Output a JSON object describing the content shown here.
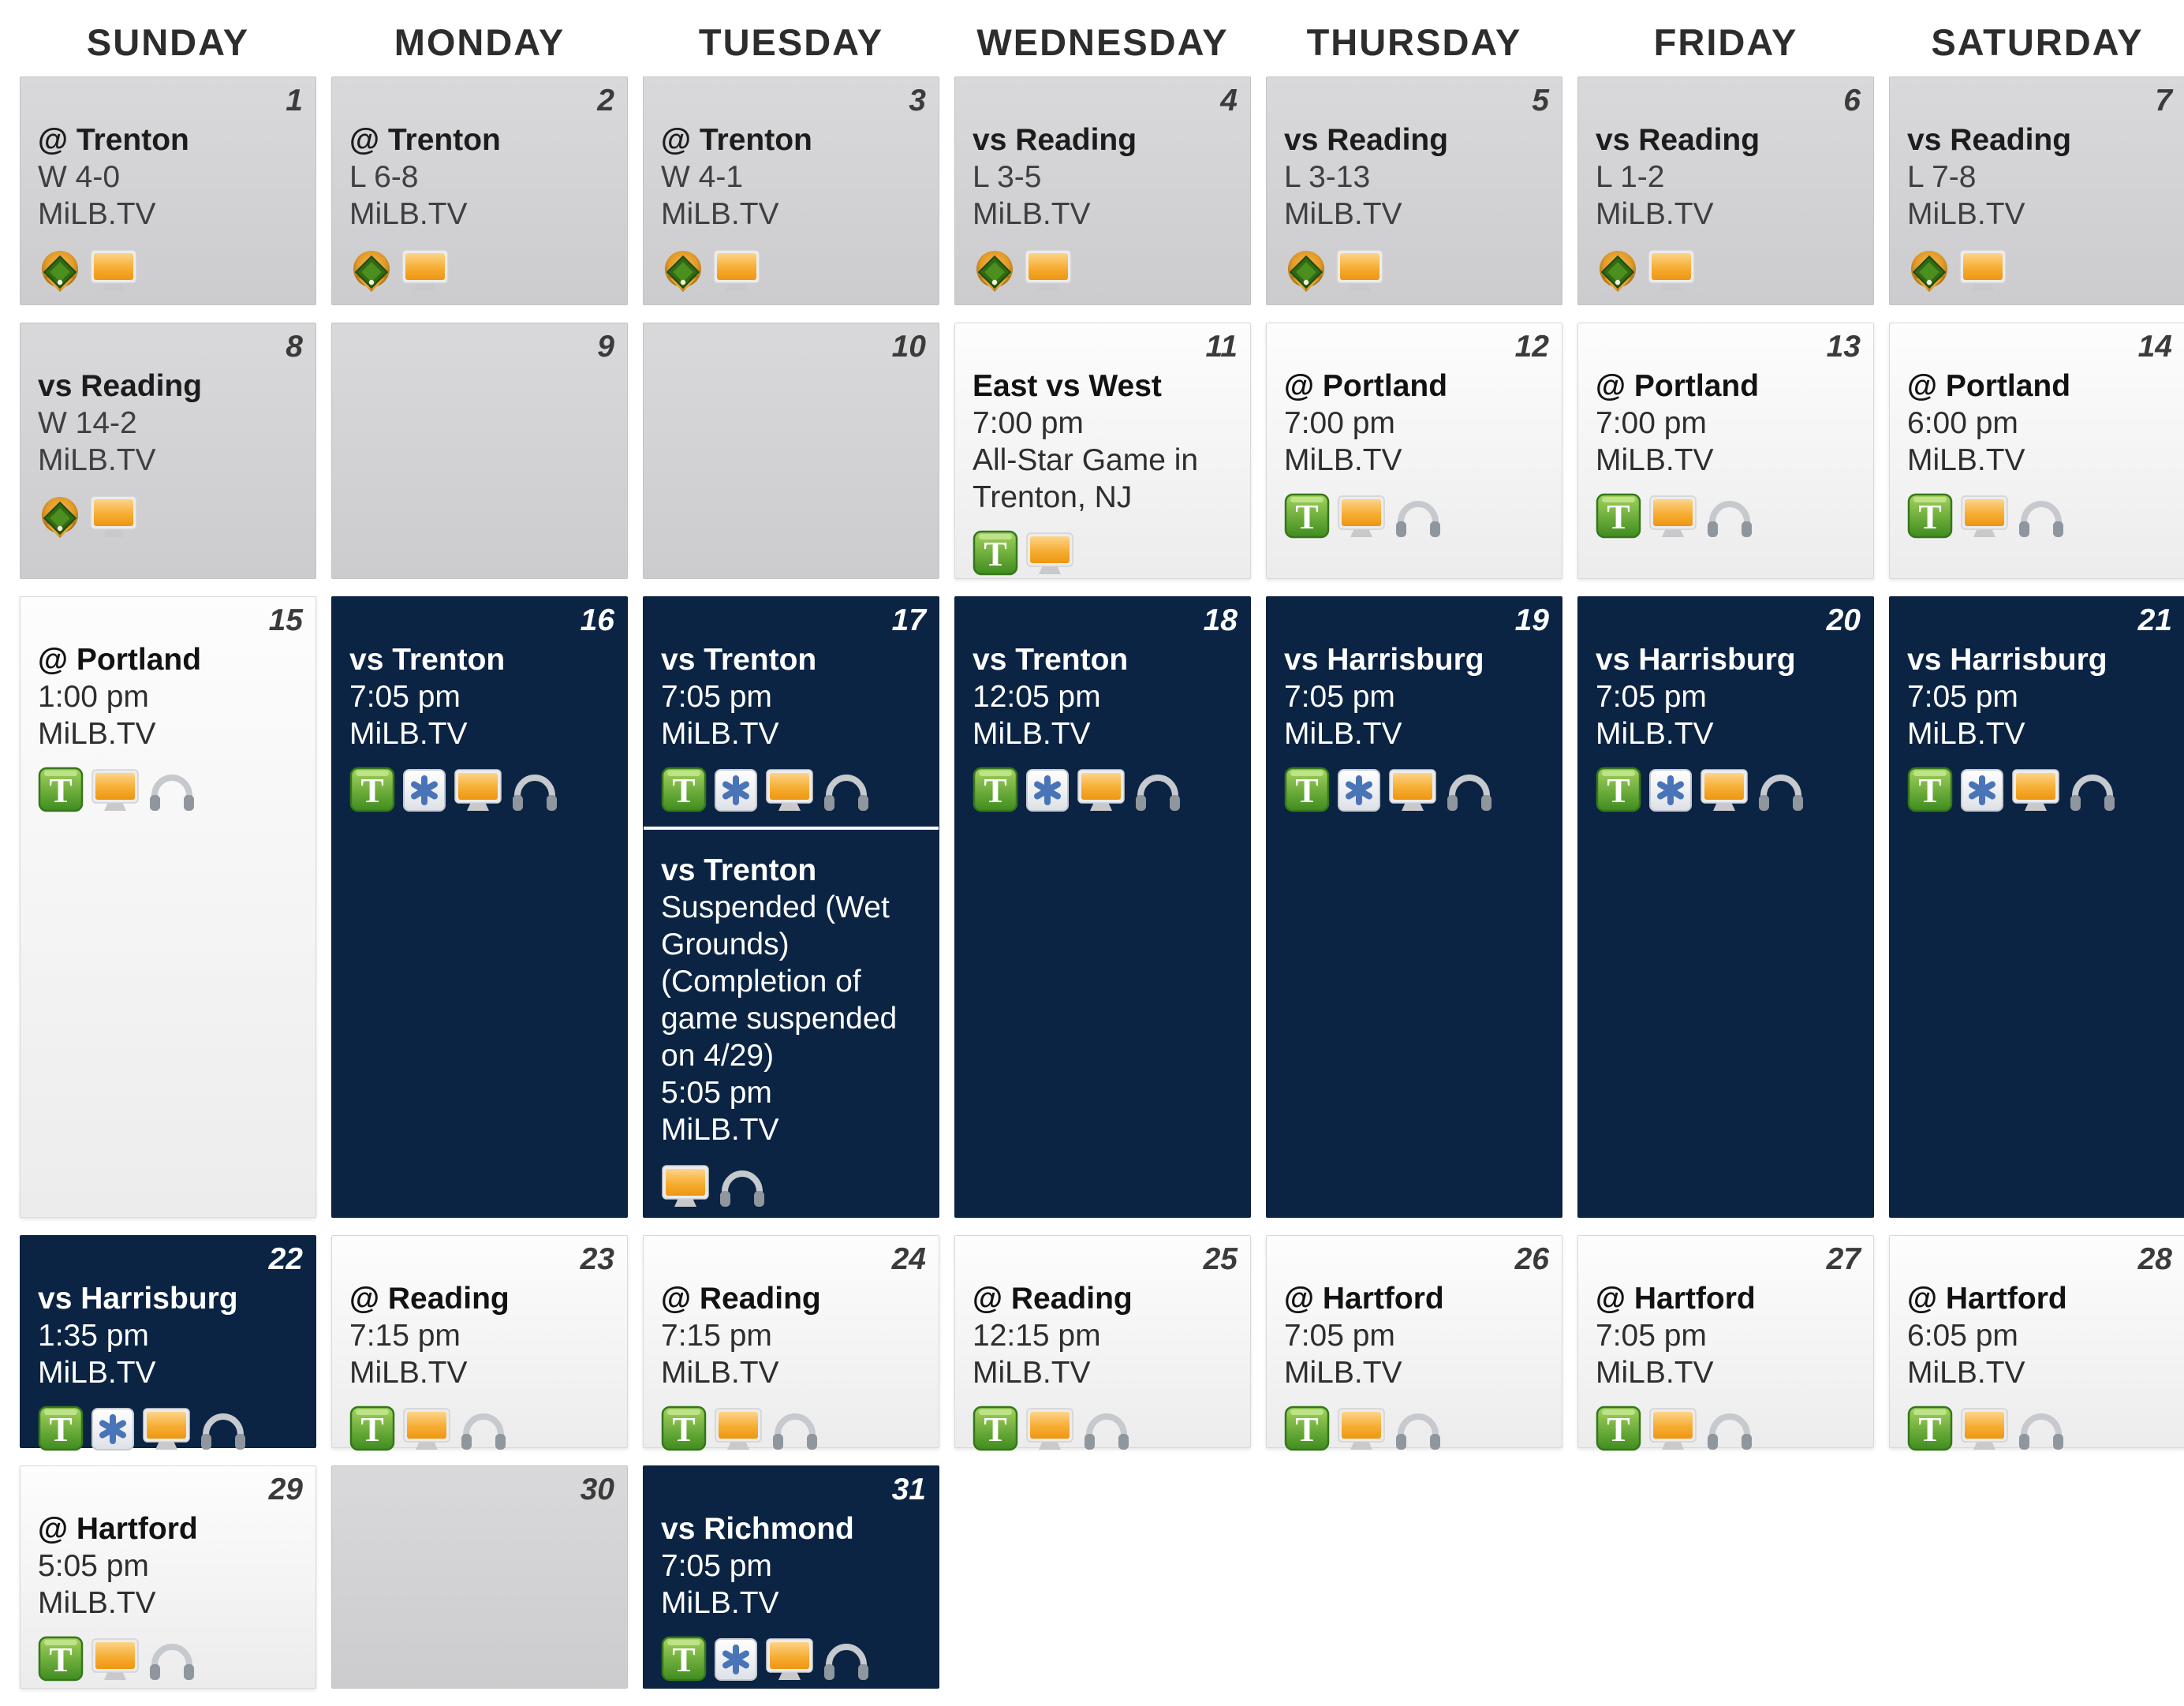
{
  "weekday_headers": [
    "SUNDAY",
    "MONDAY",
    "TUESDAY",
    "WEDNESDAY",
    "THURSDAY",
    "FRIDAY",
    "SATURDAY"
  ],
  "colors": {
    "home_cell": "#0b2444",
    "past_cell": "#d2d2d4",
    "upcoming_cell": "#f5f5f6",
    "ticket_green": "#449022",
    "monitor_orange": "#f09c1b",
    "promotion_blue": "#4a74b8",
    "day_number_dark": "#3b3b3b",
    "day_number_light": "#ffffff"
  },
  "weeks": [
    {
      "cells": [
        {
          "day": "1",
          "variant": "past",
          "games": [
            {
              "lines": [
                "@ Trenton",
                "W 4-0",
                "MiLB.TV"
              ],
              "icons": [
                "baseball-field",
                "tv-monitor"
              ]
            }
          ]
        },
        {
          "day": "2",
          "variant": "past",
          "games": [
            {
              "lines": [
                "@ Trenton",
                "L 6-8",
                "MiLB.TV"
              ],
              "icons": [
                "baseball-field",
                "tv-monitor"
              ]
            }
          ]
        },
        {
          "day": "3",
          "variant": "past",
          "games": [
            {
              "lines": [
                "@ Trenton",
                "W 4-1",
                "MiLB.TV"
              ],
              "icons": [
                "baseball-field",
                "tv-monitor"
              ]
            }
          ]
        },
        {
          "day": "4",
          "variant": "past",
          "games": [
            {
              "lines": [
                "vs Reading",
                "L 3-5",
                "MiLB.TV"
              ],
              "icons": [
                "baseball-field",
                "tv-monitor"
              ]
            }
          ]
        },
        {
          "day": "5",
          "variant": "past",
          "games": [
            {
              "lines": [
                "vs Reading",
                "L 3-13",
                "MiLB.TV"
              ],
              "icons": [
                "baseball-field",
                "tv-monitor"
              ]
            }
          ]
        },
        {
          "day": "6",
          "variant": "past",
          "games": [
            {
              "lines": [
                "vs Reading",
                "L 1-2",
                "MiLB.TV"
              ],
              "icons": [
                "baseball-field",
                "tv-monitor"
              ]
            }
          ]
        },
        {
          "day": "7",
          "variant": "past",
          "games": [
            {
              "lines": [
                "vs Reading",
                "L 7-8",
                "MiLB.TV"
              ],
              "icons": [
                "baseball-field",
                "tv-monitor"
              ]
            }
          ]
        }
      ]
    },
    {
      "cells": [
        {
          "day": "8",
          "variant": "past",
          "games": [
            {
              "lines": [
                "vs Reading",
                "W 14-2",
                "MiLB.TV"
              ],
              "icons": [
                "baseball-field",
                "tv-monitor"
              ]
            }
          ]
        },
        {
          "day": "9",
          "variant": "past",
          "games": []
        },
        {
          "day": "10",
          "variant": "past",
          "games": []
        },
        {
          "day": "11",
          "variant": "upcoming",
          "games": [
            {
              "lines": [
                "East vs West",
                "7:00 pm",
                "All-Star Game in Trenton, NJ"
              ],
              "icons": [
                "tickets",
                "tv-monitor"
              ]
            }
          ]
        },
        {
          "day": "12",
          "variant": "upcoming",
          "games": [
            {
              "lines": [
                "@ Portland",
                "7:00 pm",
                "MiLB.TV"
              ],
              "icons": [
                "tickets",
                "tv-monitor",
                "headphones"
              ]
            }
          ]
        },
        {
          "day": "13",
          "variant": "upcoming",
          "games": [
            {
              "lines": [
                "@ Portland",
                "7:00 pm",
                "MiLB.TV"
              ],
              "icons": [
                "tickets",
                "tv-monitor",
                "headphones"
              ]
            }
          ]
        },
        {
          "day": "14",
          "variant": "upcoming",
          "games": [
            {
              "lines": [
                "@ Portland",
                "6:00 pm",
                "MiLB.TV"
              ],
              "icons": [
                "tickets",
                "tv-monitor",
                "headphones"
              ]
            }
          ]
        }
      ]
    },
    {
      "cells": [
        {
          "day": "15",
          "variant": "upcoming",
          "games": [
            {
              "lines": [
                "@ Portland",
                "1:00 pm",
                "MiLB.TV"
              ],
              "icons": [
                "tickets",
                "tv-monitor",
                "headphones"
              ]
            }
          ]
        },
        {
          "day": "16",
          "variant": "home",
          "games": [
            {
              "lines": [
                "vs Trenton",
                "7:05 pm",
                "MiLB.TV"
              ],
              "icons": [
                "tickets",
                "promotion-asterisk",
                "tv-monitor",
                "headphones"
              ]
            }
          ]
        },
        {
          "day": "17",
          "variant": "home",
          "games": [
            {
              "lines": [
                "vs Trenton",
                "7:05 pm",
                "MiLB.TV"
              ],
              "icons": [
                "tickets",
                "promotion-asterisk",
                "tv-monitor",
                "headphones"
              ]
            },
            {
              "lines": [
                "vs Trenton",
                "Suspended (Wet Grounds)",
                "(Completion of game suspended on 4/29)",
                "5:05 pm",
                "MiLB.TV"
              ],
              "icons": [
                "tv-monitor",
                "headphones"
              ]
            }
          ]
        },
        {
          "day": "18",
          "variant": "home",
          "games": [
            {
              "lines": [
                "vs Trenton",
                "12:05 pm",
                "MiLB.TV"
              ],
              "icons": [
                "tickets",
                "promotion-asterisk",
                "tv-monitor",
                "headphones"
              ]
            }
          ]
        },
        {
          "day": "19",
          "variant": "home",
          "games": [
            {
              "lines": [
                "vs Harrisburg",
                "7:05 pm",
                "MiLB.TV"
              ],
              "icons": [
                "tickets",
                "promotion-asterisk",
                "tv-monitor",
                "headphones"
              ]
            }
          ]
        },
        {
          "day": "20",
          "variant": "home",
          "games": [
            {
              "lines": [
                "vs Harrisburg",
                "7:05 pm",
                "MiLB.TV"
              ],
              "icons": [
                "tickets",
                "promotion-asterisk",
                "tv-monitor",
                "headphones"
              ]
            }
          ]
        },
        {
          "day": "21",
          "variant": "home",
          "games": [
            {
              "lines": [
                "vs Harrisburg",
                "7:05 pm",
                "MiLB.TV"
              ],
              "icons": [
                "tickets",
                "promotion-asterisk",
                "tv-monitor",
                "headphones"
              ]
            }
          ]
        }
      ]
    },
    {
      "cells": [
        {
          "day": "22",
          "variant": "home",
          "games": [
            {
              "lines": [
                "vs Harrisburg",
                "1:35 pm",
                "MiLB.TV"
              ],
              "icons": [
                "tickets",
                "promotion-asterisk",
                "tv-monitor",
                "headphones"
              ]
            }
          ]
        },
        {
          "day": "23",
          "variant": "upcoming",
          "games": [
            {
              "lines": [
                "@ Reading",
                "7:15 pm",
                "MiLB.TV"
              ],
              "icons": [
                "tickets",
                "tv-monitor",
                "headphones"
              ]
            }
          ]
        },
        {
          "day": "24",
          "variant": "upcoming",
          "games": [
            {
              "lines": [
                "@ Reading",
                "7:15 pm",
                "MiLB.TV"
              ],
              "icons": [
                "tickets",
                "tv-monitor",
                "headphones"
              ]
            }
          ]
        },
        {
          "day": "25",
          "variant": "upcoming",
          "games": [
            {
              "lines": [
                "@ Reading",
                "12:15 pm",
                "MiLB.TV"
              ],
              "icons": [
                "tickets",
                "tv-monitor",
                "headphones"
              ]
            }
          ]
        },
        {
          "day": "26",
          "variant": "upcoming",
          "games": [
            {
              "lines": [
                "@ Hartford",
                "7:05 pm",
                "MiLB.TV"
              ],
              "icons": [
                "tickets",
                "tv-monitor",
                "headphones"
              ]
            }
          ]
        },
        {
          "day": "27",
          "variant": "upcoming",
          "games": [
            {
              "lines": [
                "@ Hartford",
                "7:05 pm",
                "MiLB.TV"
              ],
              "icons": [
                "tickets",
                "tv-monitor",
                "headphones"
              ]
            }
          ]
        },
        {
          "day": "28",
          "variant": "upcoming",
          "games": [
            {
              "lines": [
                "@ Hartford",
                "6:05 pm",
                "MiLB.TV"
              ],
              "icons": [
                "tickets",
                "tv-monitor",
                "headphones"
              ]
            }
          ]
        }
      ]
    },
    {
      "cells": [
        {
          "day": "29",
          "variant": "upcoming",
          "games": [
            {
              "lines": [
                "@ Hartford",
                "5:05 pm",
                "MiLB.TV"
              ],
              "icons": [
                "tickets",
                "tv-monitor",
                "headphones"
              ]
            }
          ]
        },
        {
          "day": "30",
          "variant": "past",
          "games": []
        },
        {
          "day": "31",
          "variant": "home",
          "games": [
            {
              "lines": [
                "vs Richmond",
                "7:05 pm",
                "MiLB.TV"
              ],
              "icons": [
                "tickets",
                "promotion-asterisk",
                "tv-monitor",
                "headphones"
              ]
            }
          ]
        },
        {
          "day": "",
          "variant": "none",
          "games": []
        },
        {
          "day": "",
          "variant": "none",
          "games": []
        },
        {
          "day": "",
          "variant": "none",
          "games": []
        },
        {
          "day": "",
          "variant": "none",
          "games": []
        }
      ]
    }
  ]
}
